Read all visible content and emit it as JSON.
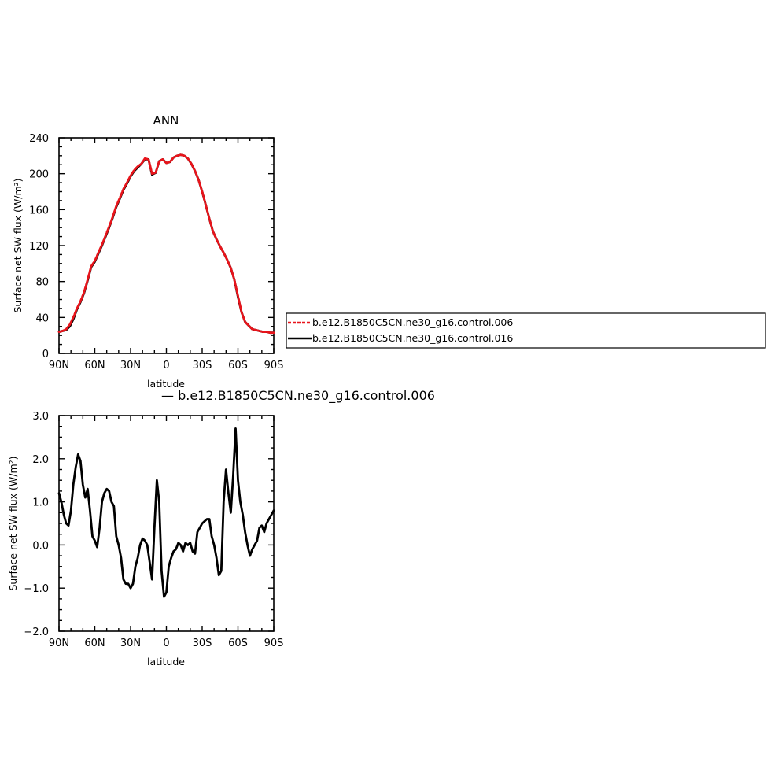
{
  "chart_data": [
    {
      "type": "line",
      "title": "ANN",
      "xlabel": "latitude",
      "ylabel": "Surface net SW flux (W/m²)",
      "xlim": [
        90,
        -90
      ],
      "ylim": [
        0,
        240
      ],
      "xticks": [
        90,
        60,
        30,
        0,
        -30,
        -60,
        -90
      ],
      "xtick_labels": [
        "90N",
        "60N",
        "30N",
        "0",
        "30S",
        "60S",
        "90S"
      ],
      "yticks": [
        0,
        40,
        80,
        120,
        160,
        200,
        240
      ],
      "ytick_labels": [
        "0",
        "40",
        "80",
        "120",
        "160",
        "200",
        "240"
      ],
      "legend_position": "right",
      "series": [
        {
          "name": "b.e12.B1850C5CN.ne30_g16.control.006",
          "color": "#e8141b",
          "dash": "dashed",
          "x": [
            90,
            87,
            84,
            81,
            78,
            75,
            72,
            69,
            66,
            63,
            60,
            57,
            54,
            51,
            48,
            45,
            42,
            39,
            36,
            33,
            30,
            27,
            24,
            21,
            18,
            15,
            12,
            9,
            6,
            3,
            0,
            -3,
            -6,
            -9,
            -12,
            -15,
            -18,
            -21,
            -24,
            -27,
            -30,
            -33,
            -36,
            -39,
            -42,
            -45,
            -48,
            -51,
            -54,
            -57,
            -60,
            -63,
            -66,
            -69,
            -72,
            -75,
            -78,
            -81,
            -84,
            -87,
            -90
          ],
          "y": [
            24,
            25,
            27,
            32,
            40,
            50,
            58,
            68,
            82,
            97,
            103,
            112,
            121,
            131,
            141,
            152,
            164,
            173,
            183,
            190,
            198,
            204,
            208,
            211,
            217,
            216,
            200,
            201,
            214,
            216,
            212,
            213,
            218,
            220,
            221,
            220,
            217,
            211,
            203,
            193,
            180,
            165,
            150,
            136,
            127,
            119,
            112,
            104,
            95,
            82,
            64,
            46,
            35,
            31,
            27,
            26,
            25,
            24,
            24,
            23,
            23
          ]
        },
        {
          "name": "b.e12.B1850C5CN.ne30_g16.control.016",
          "color": "#000000",
          "dash": "solid",
          "x": [
            90,
            87,
            84,
            81,
            78,
            75,
            72,
            69,
            66,
            63,
            60,
            57,
            54,
            51,
            48,
            45,
            42,
            39,
            36,
            33,
            30,
            27,
            24,
            21,
            18,
            15,
            12,
            9,
            6,
            3,
            0,
            -3,
            -6,
            -9,
            -12,
            -15,
            -18,
            -21,
            -24,
            -27,
            -30,
            -33,
            -36,
            -39,
            -42,
            -45,
            -48,
            -51,
            -54,
            -57,
            -60,
            -63,
            -66,
            -69,
            -72,
            -75,
            -78,
            -81,
            -84,
            -87,
            -90
          ],
          "y": [
            24,
            25,
            26,
            30,
            38,
            49,
            57,
            67,
            81,
            96,
            102,
            111,
            120,
            130,
            140,
            151,
            163,
            172,
            182,
            189,
            197,
            203,
            207,
            211,
            216,
            216,
            199,
            201,
            214,
            216,
            212,
            213,
            218,
            220,
            221,
            220,
            217,
            211,
            203,
            193,
            180,
            165,
            150,
            136,
            127,
            119,
            112,
            104,
            95,
            82,
            63,
            46,
            35,
            31,
            27,
            26,
            25,
            24,
            24,
            23,
            23
          ]
        }
      ]
    },
    {
      "type": "line",
      "title": "— b.e12.B1850C5CN.ne30_g16.control.006",
      "xlabel": "latitude",
      "ylabel": "Surface net SW flux (W/m²)",
      "xlim": [
        90,
        -90
      ],
      "ylim": [
        -2.0,
        3.0
      ],
      "xticks": [
        90,
        60,
        30,
        0,
        -30,
        -60,
        -90
      ],
      "xtick_labels": [
        "90N",
        "60N",
        "30N",
        "0",
        "30S",
        "60S",
        "90S"
      ],
      "yticks": [
        -2.0,
        -1.0,
        0.0,
        1.0,
        2.0,
        3.0
      ],
      "ytick_labels": [
        "−2.0",
        "−1.0",
        "0.0",
        "1.0",
        "2.0",
        "3.0"
      ],
      "series": [
        {
          "name": "",
          "color": "#000000",
          "dash": "solid",
          "x": [
            90,
            88,
            86,
            84,
            82,
            80,
            78,
            76,
            74,
            72,
            70,
            68,
            66,
            64,
            62,
            60,
            58,
            56,
            54,
            52,
            50,
            48,
            46,
            44,
            42,
            40,
            38,
            36,
            34,
            32,
            30,
            28,
            26,
            24,
            22,
            20,
            18,
            16,
            14,
            12,
            10,
            8,
            6,
            4,
            2,
            0,
            -2,
            -4,
            -6,
            -8,
            -10,
            -12,
            -14,
            -16,
            -18,
            -20,
            -22,
            -24,
            -26,
            -28,
            -30,
            -32,
            -34,
            -36,
            -38,
            -40,
            -42,
            -44,
            -46,
            -48,
            -50,
            -52,
            -54,
            -56,
            -58,
            -60,
            -62,
            -64,
            -66,
            -68,
            -70,
            -72,
            -74,
            -76,
            -78,
            -80,
            -82,
            -84,
            -86,
            -88,
            -90
          ],
          "y": [
            1.2,
            1.0,
            0.7,
            0.5,
            0.45,
            0.8,
            1.4,
            1.8,
            2.1,
            1.95,
            1.4,
            1.1,
            1.3,
            0.8,
            0.2,
            0.1,
            -0.05,
            0.4,
            1.0,
            1.2,
            1.3,
            1.25,
            1.0,
            0.9,
            0.2,
            0.0,
            -0.3,
            -0.8,
            -0.9,
            -0.9,
            -1.0,
            -0.9,
            -0.5,
            -0.3,
            0.0,
            0.15,
            0.1,
            0.0,
            -0.4,
            -0.8,
            0.4,
            1.5,
            1.0,
            -0.6,
            -1.2,
            -1.1,
            -0.5,
            -0.3,
            -0.15,
            -0.1,
            0.05,
            0.0,
            -0.15,
            0.05,
            0.0,
            0.05,
            -0.15,
            -0.2,
            0.3,
            0.4,
            0.5,
            0.55,
            0.6,
            0.6,
            0.2,
            0.0,
            -0.3,
            -0.7,
            -0.6,
            1.0,
            1.75,
            1.2,
            0.75,
            1.6,
            2.7,
            1.5,
            1.0,
            0.7,
            0.3,
            0.0,
            -0.25,
            -0.1,
            0.0,
            0.1,
            0.4,
            0.45,
            0.3,
            0.5,
            0.6,
            0.7,
            0.8
          ]
        }
      ]
    }
  ]
}
